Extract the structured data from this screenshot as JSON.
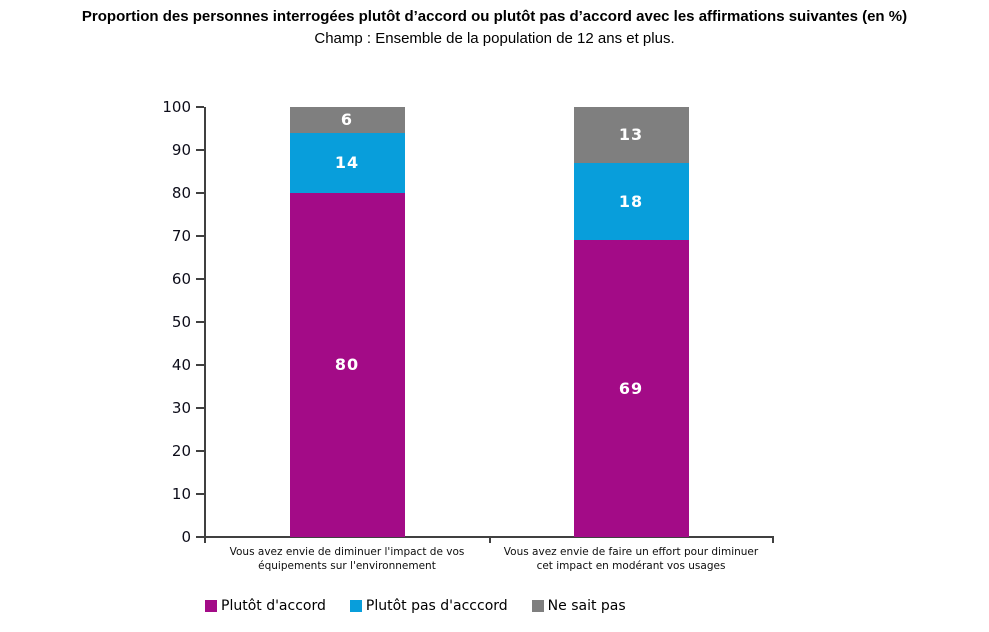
{
  "page": {
    "title": "Proportion des personnes interrogées plutôt d’accord ou plutôt pas d’accord avec les affirmations suivantes (en %)",
    "subtitle": "Champ : Ensemble de la population de 12 ans et plus."
  },
  "chart_data": {
    "type": "bar",
    "stacked": true,
    "orientation": "vertical",
    "title": "Proportion des personnes interrogées plutôt d’accord ou plutôt pas d’accord avec les affirmations suivantes (en %)",
    "subtitle": "Champ : Ensemble de la population de 12 ans et plus.",
    "categories": [
      "Vous avez envie de diminuer l'impact de vos équipements sur l'environnement",
      "Vous avez envie de faire un effort pour diminuer cet impact en modérant vos usages"
    ],
    "series": [
      {
        "name": "Plutôt d'accord",
        "color": "#A30B87",
        "values": [
          80,
          69
        ]
      },
      {
        "name": "Plutôt pas d'acccord",
        "color": "#089EDB",
        "values": [
          14,
          18
        ]
      },
      {
        "name": "Ne sait pas",
        "color": "#7F7F7F",
        "values": [
          6,
          13
        ]
      }
    ],
    "ylim": [
      0,
      100
    ],
    "ytick_step": 10,
    "ytick_labels": [
      "0",
      "10",
      "20",
      "30",
      "40",
      "50",
      "60",
      "70",
      "80",
      "90",
      "100"
    ],
    "grid": false,
    "value_labels": true,
    "legend_position": "bottom",
    "axis_color": "#404040",
    "value_label_color": "#FFFFFF"
  }
}
